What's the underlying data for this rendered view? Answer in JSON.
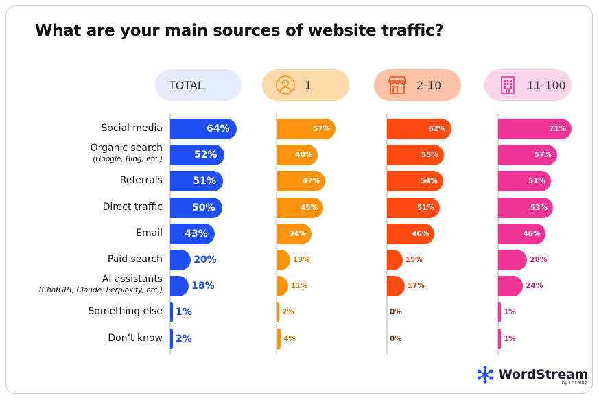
{
  "chart_data": {
    "type": "bar",
    "title": "What are your main sources of website traffic?",
    "categories": [
      {
        "label": "Social media",
        "sub": ""
      },
      {
        "label": "Organic search",
        "sub": "(Google, Bing, etc.)"
      },
      {
        "label": "Referrals",
        "sub": ""
      },
      {
        "label": "Direct traffic",
        "sub": ""
      },
      {
        "label": "Email",
        "sub": ""
      },
      {
        "label": "Paid search",
        "sub": ""
      },
      {
        "label": "AI assistants",
        "sub": "(ChatGPT, Claude, Perplexity, etc.)"
      },
      {
        "label": "Something else",
        "sub": ""
      },
      {
        "label": "Don’t know",
        "sub": ""
      }
    ],
    "series": [
      {
        "name": "TOTAL",
        "color": "#1f4ff0",
        "light": "#e6ecfb",
        "icon": "",
        "values": [
          64,
          52,
          51,
          50,
          43,
          20,
          18,
          1,
          2
        ]
      },
      {
        "name": "1",
        "color": "#fb9310",
        "light": "#fcd9a8",
        "icon": "person-icon",
        "values": [
          57,
          40,
          47,
          45,
          34,
          13,
          11,
          2,
          4
        ]
      },
      {
        "name": "2-10",
        "color": "#fc4c14",
        "light": "#fcc3a9",
        "icon": "storefront-icon",
        "values": [
          62,
          55,
          54,
          51,
          46,
          15,
          17,
          0,
          0
        ]
      },
      {
        "name": "11-100",
        "color": "#ee3596",
        "light": "#fad4e8",
        "icon": "office-building-icon",
        "values": [
          71,
          57,
          51,
          53,
          46,
          28,
          24,
          1,
          1
        ]
      }
    ],
    "value_suffix": "%",
    "xlim": [
      0,
      100
    ]
  },
  "branding": {
    "name": "WordStream",
    "byline": "by LocaliQ"
  }
}
